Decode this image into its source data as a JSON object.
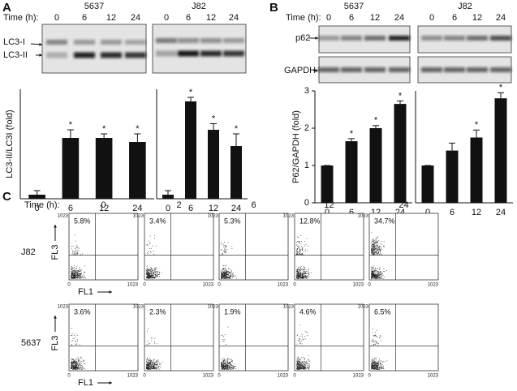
{
  "panel_a": {
    "label": "A",
    "time_label": "Time (h):",
    "lines": [
      "5637",
      "J82"
    ],
    "times": [
      "0",
      "6",
      "12",
      "24"
    ],
    "bands": [
      "LC3-I",
      "LC3-II"
    ]
  },
  "panel_b": {
    "label": "B",
    "time_label": "Time (h):",
    "lines": [
      "5637",
      "J82"
    ],
    "times": [
      "0",
      "6",
      "12",
      "24"
    ],
    "bands": [
      "p62",
      "GAPDH"
    ]
  },
  "chart_data": [
    {
      "type": "bar",
      "categories": [
        "0",
        "6",
        "12",
        "24"
      ],
      "values": [
        1,
        15,
        15,
        14
      ],
      "errors": [
        1,
        2,
        1,
        2
      ],
      "significance": [
        null,
        "*",
        "*",
        "*"
      ],
      "ylim": [
        0,
        27
      ],
      "y_label": "LC3-II/LC3I (fold)",
      "x_label": "Time (h)",
      "color": "#111111"
    },
    {
      "type": "bar",
      "categories": [
        "0",
        "6",
        "12",
        "24"
      ],
      "values": [
        1,
        24,
        17,
        13
      ],
      "errors": [
        1,
        1,
        1.5,
        3
      ],
      "significance": [
        null,
        "*",
        "*",
        "*"
      ],
      "ylim": [
        0,
        27
      ],
      "color": "#111111"
    },
    {
      "type": "bar",
      "categories": [
        "0",
        "6",
        "12",
        "24"
      ],
      "values": [
        1,
        1.65,
        2,
        2.65
      ],
      "errors": [
        0,
        0.07,
        0.07,
        0.08
      ],
      "significance": [
        null,
        "*",
        "*",
        "*"
      ],
      "ylim": [
        0,
        3
      ],
      "yticks": [
        0,
        1,
        2,
        3
      ],
      "y_label": "P62/GAPDH (fold)",
      "color": "#111111"
    },
    {
      "type": "bar",
      "categories": [
        "0",
        "6",
        "12",
        "24"
      ],
      "values": [
        1,
        1.4,
        1.75,
        2.8
      ],
      "errors": [
        0,
        0.2,
        0.2,
        0.15
      ],
      "significance": [
        null,
        null,
        "*",
        "*"
      ],
      "ylim": [
        0,
        3
      ],
      "color": "#111111"
    }
  ],
  "panel_c": {
    "label": "C",
    "time_label": "Time (h):",
    "times": [
      "0",
      "2",
      "6",
      "12",
      "24"
    ],
    "axis_ticks": [
      0,
      1023
    ],
    "x_label": "FL1",
    "y_label": "FL3",
    "rows": [
      {
        "name": "J82",
        "values": [
          5.8,
          3.4,
          5.3,
          12.8,
          34.7
        ],
        "value_labels": [
          "5.8%",
          "3.4%",
          "5.3%",
          "12.8%",
          "34.7%"
        ]
      },
      {
        "name": "5637",
        "values": [
          3.6,
          2.3,
          1.9,
          4.6,
          6.5
        ],
        "value_labels": [
          "3.6%",
          "2.3%",
          "1.9%",
          "4.6%",
          "6.5%"
        ]
      }
    ]
  }
}
